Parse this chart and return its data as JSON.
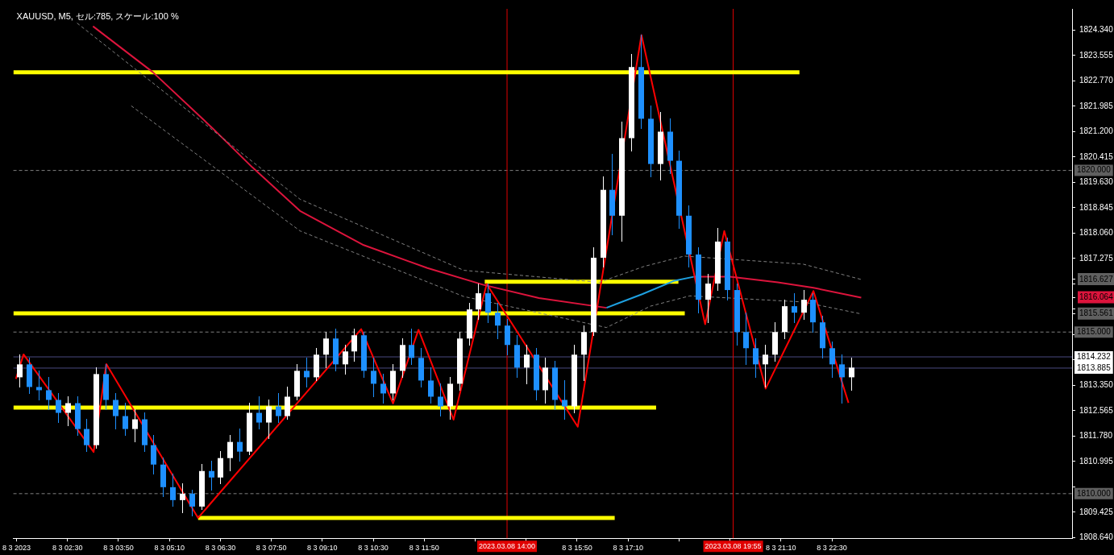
{
  "chart_data": {
    "type": "candlestick",
    "title": "XAUUSD, M5, セル:785, スケール:100 %",
    "xlim": [
      "2023-03-08T01:05",
      "2023-03-09T04:47"
    ],
    "ylim": [
      1808.62,
      1825.0
    ],
    "xticks": [
      {
        "value": "2023-03-08T01:10",
        "label": "8 3 2023"
      },
      {
        "value": "2023-03-08T02:30",
        "label": "8 3 02:30"
      },
      {
        "value": "2023-03-08T03:50",
        "label": "8 3 03:50"
      },
      {
        "value": "2023-03-08T05:10",
        "label": "8 3 05:10"
      },
      {
        "value": "2023-03-08T06:30",
        "label": "8 3 06:30"
      },
      {
        "value": "2023-03-08T07:50",
        "label": "8 3 07:50"
      },
      {
        "value": "2023-03-08T09:10",
        "label": "8 3 09:10"
      },
      {
        "value": "2023-03-08T10:30",
        "label": "8 3 10:30"
      },
      {
        "value": "2023-03-08T11:50",
        "label": "8 3 11:50"
      },
      {
        "value": "2023-03-08T13:10",
        "label": null
      },
      {
        "value": "2023-03-08T14:30",
        "label": null
      },
      {
        "value": "2023-03-08T15:50",
        "label": "8 3 15:50"
      },
      {
        "value": "2023-03-08T17:10",
        "label": "8 3 17:10"
      },
      {
        "value": "2023-03-08T18:30",
        "label": null
      },
      {
        "value": "2023-03-08T19:50",
        "label": null
      },
      {
        "value": "2023-03-08T21:10",
        "label": "8 3 21:10"
      },
      {
        "value": "2023-03-08T22:30",
        "label": "8 3 22:30"
      }
    ],
    "yticks": [
      {
        "value": 1824.34,
        "label": "1824.340"
      },
      {
        "value": 1823.555,
        "label": "1823.555"
      },
      {
        "value": 1822.77,
        "label": "1822.770"
      },
      {
        "value": 1821.985,
        "label": "1821.985"
      },
      {
        "value": 1821.2,
        "label": "1821.200"
      },
      {
        "value": 1820.415,
        "label": "1820.415"
      },
      {
        "value": 1819.63,
        "label": "1819.630"
      },
      {
        "value": 1818.845,
        "label": "1818.845"
      },
      {
        "value": 1818.06,
        "label": "1818.060"
      },
      {
        "value": 1817.275,
        "label": "1817.275"
      },
      {
        "value": 1816.627,
        "label": "1816.627"
      },
      {
        "value": 1816.49,
        "label": null
      },
      {
        "value": 1816.064,
        "label": "1816.064"
      },
      {
        "value": 1815.705,
        "label": null
      },
      {
        "value": 1815.561,
        "label": "1815.561"
      },
      {
        "value": 1814.92,
        "label": null
      },
      {
        "value": 1814.135,
        "label": null
      },
      {
        "value": 1813.35,
        "label": "1813.350"
      },
      {
        "value": 1812.565,
        "label": "1812.565"
      },
      {
        "value": 1811.78,
        "label": "1811.780"
      },
      {
        "value": 1810.995,
        "label": "1810.995"
      },
      {
        "value": 1810.21,
        "label": null
      },
      {
        "value": 1809.425,
        "label": "1809.425"
      },
      {
        "value": 1808.64,
        "label": "1808.640"
      }
    ],
    "grid": false,
    "legend": false,
    "marker": "none",
    "ref_lines": [
      {
        "axis": "y",
        "value": 1820,
        "label": "1820.000",
        "color": "#808080",
        "line_style": "dashed"
      },
      {
        "axis": "y",
        "value": 1815,
        "label": "1815.000",
        "color": "#808080",
        "line_style": "dashed"
      },
      {
        "axis": "y",
        "value": 1810,
        "label": "1810.000",
        "color": "#808080",
        "line_style": "dashed"
      },
      {
        "axis": "y",
        "value": 1814.232,
        "label": "1814.232",
        "color": "#4a4a80",
        "line_style": "solid"
      },
      {
        "axis": "y",
        "value": 1813.885,
        "label": "1813.885",
        "color": "#4a4a80",
        "line_style": "solid"
      },
      {
        "axis": "x",
        "value": "2023-03-08T14:00",
        "label": "2023.03.08 14:00",
        "color": "#e00000",
        "line_style": "solid"
      },
      {
        "axis": "x",
        "value": "2023-03-08T19:55",
        "label": "2023.03.08 19:55",
        "color": "#e00000",
        "line_style": "solid"
      }
    ],
    "series": [
      {
        "type": "line",
        "color": "#808080",
        "line_style": "dashed",
        "x": [
          "2023-03-08T02:45",
          "2023-03-08T08:35",
          "2023-03-08T12:52",
          "2023-03-08T16:25",
          "2023-03-08T17:35",
          "2023-03-08T18:38",
          "2023-03-08T21:45",
          "2023-03-08T23:16"
        ],
        "values": [
          1824.56,
          1819.11,
          1816.91,
          1816.54,
          1817.03,
          1817.35,
          1817.1,
          1816.627
        ]
      },
      {
        "type": "line",
        "color": "#808080",
        "line_style": "dashed",
        "x": [
          "2023-03-08T04:10",
          "2023-03-08T08:35",
          "2023-03-08T12:52",
          "2023-03-08T16:36",
          "2023-03-08T17:45",
          "2023-03-08T18:47",
          "2023-03-08T21:45",
          "2023-03-08T23:16"
        ],
        "values": [
          1822.0,
          1818.13,
          1816.1,
          1815.14,
          1815.8,
          1816.12,
          1815.93,
          1815.561
        ]
      },
      {
        "type": "line",
        "color": "#dc143c",
        "x": [
          "2023-03-08T03:10",
          "2023-03-08T04:44",
          "2023-03-08T06:17",
          "2023-03-08T07:20",
          "2023-03-08T08:35",
          "2023-03-08T10:15",
          "2023-03-08T11:55",
          "2023-03-08T13:23",
          "2023-03-08T14:50",
          "2023-03-08T16:36",
          "2023-03-08T17:30",
          "2023-03-08T18:53",
          "2023-03-08T19:50",
          "2023-03-08T21:05",
          "2023-03-08T22:01",
          "2023-03-08T23:16"
        ],
        "values": [
          1824.46,
          1823.04,
          1821.32,
          1820.1,
          1818.75,
          1817.69,
          1816.98,
          1816.46,
          1816.05,
          1815.75,
          null,
          1816.71,
          1816.71,
          1816.54,
          1816.37,
          1816.064
        ]
      },
      {
        "type": "line",
        "color": "#1ea0e0",
        "x": [
          "2023-03-08T16:36",
          "2023-03-08T17:32",
          "2023-03-08T18:23",
          "2023-03-08T18:53"
        ],
        "values": [
          1815.75,
          1816.17,
          1816.59,
          1816.71
        ]
      },
      {
        "type": "line",
        "color": "#ff0000",
        "x": [
          "2023-03-08T01:09",
          "2023-03-08T01:21",
          "2023-03-08T03:11",
          "2023-03-08T03:31",
          "2023-03-08T05:55",
          "2023-03-08T10:11",
          "2023-03-08T11:01",
          "2023-03-08T11:41",
          "2023-03-08T12:36",
          "2023-03-08T13:28",
          "2023-03-08T15:51",
          "2023-03-08T17:31",
          "2023-03-08T19:11",
          "2023-03-08T19:41",
          "2023-03-08T20:46",
          "2023-03-08T22:01",
          "2023-03-08T22:56"
        ],
        "values": [
          1813.55,
          1814.31,
          1811.29,
          1814.01,
          1809.25,
          1815.09,
          1812.79,
          1815.07,
          1812.29,
          1816.49,
          1812.07,
          1824.19,
          1815.24,
          1818.13,
          1813.25,
          1816.27,
          1812.81
        ]
      },
      {
        "type": "candlestick",
        "x": [
          "2023-03-08T01:15",
          "2023-03-08T01:30",
          "2023-03-08T01:45",
          "2023-03-08T02:00",
          "2023-03-08T02:15",
          "2023-03-08T02:30",
          "2023-03-08T02:45",
          "2023-03-08T03:00",
          "2023-03-08T03:15",
          "2023-03-08T03:30",
          "2023-03-08T03:45",
          "2023-03-08T04:00",
          "2023-03-08T04:15",
          "2023-03-08T04:30",
          "2023-03-08T04:45",
          "2023-03-08T05:00",
          "2023-03-08T05:15",
          "2023-03-08T05:30",
          "2023-03-08T05:45",
          "2023-03-08T06:00",
          "2023-03-08T06:15",
          "2023-03-08T06:30",
          "2023-03-08T06:45",
          "2023-03-08T07:00",
          "2023-03-08T07:15",
          "2023-03-08T07:30",
          "2023-03-08T07:45",
          "2023-03-08T08:00",
          "2023-03-08T08:15",
          "2023-03-08T08:30",
          "2023-03-08T08:45",
          "2023-03-08T09:00",
          "2023-03-08T09:15",
          "2023-03-08T09:30",
          "2023-03-08T09:45",
          "2023-03-08T10:00",
          "2023-03-08T10:15",
          "2023-03-08T10:30",
          "2023-03-08T10:45",
          "2023-03-08T11:00",
          "2023-03-08T11:15",
          "2023-03-08T11:30",
          "2023-03-08T11:45",
          "2023-03-08T12:00",
          "2023-03-08T12:15",
          "2023-03-08T12:30",
          "2023-03-08T12:45",
          "2023-03-08T13:00",
          "2023-03-08T13:15",
          "2023-03-08T13:30",
          "2023-03-08T13:45",
          "2023-03-08T14:00",
          "2023-03-08T14:15",
          "2023-03-08T14:30",
          "2023-03-08T14:45",
          "2023-03-08T15:00",
          "2023-03-08T15:15",
          "2023-03-08T15:30",
          "2023-03-08T15:45",
          "2023-03-08T16:00",
          "2023-03-08T16:15",
          "2023-03-08T16:30",
          "2023-03-08T16:45",
          "2023-03-08T17:00",
          "2023-03-08T17:15",
          "2023-03-08T17:30",
          "2023-03-08T17:45",
          "2023-03-08T18:00",
          "2023-03-08T18:15",
          "2023-03-08T18:30",
          "2023-03-08T18:45",
          "2023-03-08T19:00",
          "2023-03-08T19:15",
          "2023-03-08T19:30",
          "2023-03-08T19:45",
          "2023-03-08T20:00",
          "2023-03-08T20:15",
          "2023-03-08T20:30",
          "2023-03-08T20:45",
          "2023-03-08T21:00",
          "2023-03-08T21:15",
          "2023-03-08T21:30",
          "2023-03-08T21:45",
          "2023-03-08T22:00",
          "2023-03-08T22:15",
          "2023-03-08T22:30",
          "2023-03-08T22:45",
          "2023-03-08T23:00"
        ],
        "ohlc": [
          [
            1813.6,
            1814.3,
            1813.3,
            1814.0
          ],
          [
            1814.0,
            1814.2,
            1813.1,
            1813.3
          ],
          [
            1813.3,
            1813.8,
            1812.9,
            1813.2
          ],
          [
            1813.2,
            1813.6,
            1812.6,
            1812.9
          ],
          [
            1812.9,
            1813.1,
            1812.2,
            1812.5
          ],
          [
            1812.5,
            1813.0,
            1812.1,
            1812.8
          ],
          [
            1812.8,
            1813.0,
            1811.8,
            1812.0
          ],
          [
            1812.0,
            1812.3,
            1811.3,
            1811.5
          ],
          [
            1811.5,
            1813.9,
            1811.4,
            1813.7
          ],
          [
            1813.7,
            1814.0,
            1812.6,
            1812.9
          ],
          [
            1812.9,
            1813.1,
            1812.0,
            1812.4
          ],
          [
            1812.4,
            1812.8,
            1811.8,
            1812.0
          ],
          [
            1812.0,
            1812.6,
            1811.6,
            1812.3
          ],
          [
            1812.3,
            1812.5,
            1811.3,
            1811.5
          ],
          [
            1811.5,
            1811.8,
            1810.6,
            1810.9
          ],
          [
            1810.9,
            1811.1,
            1809.9,
            1810.2
          ],
          [
            1810.2,
            1810.6,
            1809.6,
            1809.8
          ],
          [
            1809.8,
            1810.3,
            1809.4,
            1810.0
          ],
          [
            1810.0,
            1810.1,
            1809.3,
            1809.6
          ],
          [
            1809.6,
            1810.9,
            1809.5,
            1810.7
          ],
          [
            1810.7,
            1811.0,
            1810.1,
            1810.5
          ],
          [
            1810.5,
            1811.3,
            1810.3,
            1811.1
          ],
          [
            1811.1,
            1811.8,
            1810.7,
            1811.6
          ],
          [
            1811.6,
            1812.0,
            1811.0,
            1811.3
          ],
          [
            1811.3,
            1812.8,
            1811.2,
            1812.5
          ],
          [
            1812.5,
            1813.0,
            1812.0,
            1812.2
          ],
          [
            1812.2,
            1812.9,
            1811.7,
            1812.7
          ],
          [
            1812.7,
            1813.1,
            1812.2,
            1812.4
          ],
          [
            1812.4,
            1813.3,
            1812.3,
            1813.0
          ],
          [
            1813.0,
            1814.0,
            1812.9,
            1813.8
          ],
          [
            1813.8,
            1814.2,
            1813.3,
            1813.6
          ],
          [
            1813.6,
            1814.5,
            1813.5,
            1814.3
          ],
          [
            1814.3,
            1815.0,
            1813.9,
            1814.8
          ],
          [
            1814.8,
            1815.1,
            1813.8,
            1814.0
          ],
          [
            1814.0,
            1814.6,
            1813.7,
            1814.4
          ],
          [
            1814.4,
            1815.1,
            1814.1,
            1814.9
          ],
          [
            1814.9,
            1815.0,
            1813.6,
            1813.8
          ],
          [
            1813.8,
            1814.2,
            1813.0,
            1813.4
          ],
          [
            1813.4,
            1813.7,
            1812.8,
            1813.1
          ],
          [
            1813.1,
            1814.0,
            1812.9,
            1813.8
          ],
          [
            1813.8,
            1814.8,
            1813.6,
            1814.6
          ],
          [
            1814.6,
            1815.1,
            1814.0,
            1814.2
          ],
          [
            1814.2,
            1814.5,
            1813.3,
            1813.5
          ],
          [
            1813.5,
            1813.9,
            1812.8,
            1813.0
          ],
          [
            1813.0,
            1813.4,
            1812.4,
            1812.7
          ],
          [
            1812.7,
            1813.6,
            1812.3,
            1813.4
          ],
          [
            1813.4,
            1815.0,
            1813.2,
            1814.8
          ],
          [
            1814.8,
            1815.9,
            1814.6,
            1815.7
          ],
          [
            1815.7,
            1816.5,
            1815.4,
            1816.2
          ],
          [
            1816.2,
            1816.5,
            1815.3,
            1815.6
          ],
          [
            1815.6,
            1815.9,
            1814.8,
            1815.2
          ],
          [
            1815.2,
            1815.4,
            1814.3,
            1814.6
          ],
          [
            1814.6,
            1814.9,
            1813.6,
            1813.9
          ],
          [
            1813.9,
            1814.6,
            1813.4,
            1814.3
          ],
          [
            1814.3,
            1814.5,
            1812.9,
            1813.2
          ],
          [
            1813.2,
            1814.2,
            1812.8,
            1813.9
          ],
          [
            1813.9,
            1814.1,
            1812.6,
            1812.9
          ],
          [
            1812.9,
            1813.5,
            1812.3,
            1812.7
          ],
          [
            1812.7,
            1814.6,
            1812.5,
            1814.3
          ],
          [
            1814.3,
            1815.2,
            1813.5,
            1815.0
          ],
          [
            1815.0,
            1817.6,
            1814.9,
            1817.3
          ],
          [
            1817.3,
            1819.8,
            1817.0,
            1819.4
          ],
          [
            1819.4,
            1820.5,
            1818.0,
            1818.6
          ],
          [
            1818.6,
            1821.5,
            1817.8,
            1821.0
          ],
          [
            1821.0,
            1823.6,
            1820.6,
            1823.2
          ],
          [
            1823.2,
            1824.2,
            1821.3,
            1821.6
          ],
          [
            1821.6,
            1822.0,
            1819.8,
            1820.2
          ],
          [
            1820.2,
            1821.8,
            1819.7,
            1821.2
          ],
          [
            1821.2,
            1821.6,
            1819.9,
            1820.3
          ],
          [
            1820.3,
            1820.6,
            1818.2,
            1818.6
          ],
          [
            1818.6,
            1818.9,
            1817.0,
            1817.4
          ],
          [
            1817.4,
            1817.6,
            1815.6,
            1816.0
          ],
          [
            1816.0,
            1816.8,
            1815.3,
            1816.5
          ],
          [
            1816.5,
            1818.2,
            1816.3,
            1817.8
          ],
          [
            1817.8,
            1817.9,
            1816.0,
            1816.3
          ],
          [
            1816.3,
            1816.5,
            1814.6,
            1815.0
          ],
          [
            1815.0,
            1815.6,
            1814.0,
            1814.5
          ],
          [
            1814.5,
            1814.8,
            1813.6,
            1814.0
          ],
          [
            1814.0,
            1814.6,
            1813.3,
            1814.3
          ],
          [
            1814.3,
            1815.3,
            1814.1,
            1815.0
          ],
          [
            1815.0,
            1816.0,
            1814.8,
            1815.8
          ],
          [
            1815.8,
            1816.2,
            1815.3,
            1815.6
          ],
          [
            1815.6,
            1816.3,
            1815.4,
            1816.0
          ],
          [
            1816.0,
            1816.2,
            1815.0,
            1815.3
          ],
          [
            1815.3,
            1815.5,
            1814.2,
            1814.5
          ],
          [
            1814.5,
            1814.7,
            1813.6,
            1814.0
          ],
          [
            1814.0,
            1814.3,
            1812.8,
            1813.6
          ],
          [
            1813.6,
            1814.2,
            1813.2,
            1813.9
          ]
        ],
        "colors": [
          "#ffffff",
          "#1e90ff",
          "#1e90ff",
          "#1e90ff",
          "#1e90ff",
          "#ffffff",
          "#1e90ff",
          "#1e90ff",
          "#ffffff",
          "#1e90ff",
          "#1e90ff",
          "#1e90ff",
          "#ffffff",
          "#1e90ff",
          "#1e90ff",
          "#1e90ff",
          "#1e90ff",
          "#ffffff",
          "#1e90ff",
          "#ffffff",
          "#1e90ff",
          "#ffffff",
          "#ffffff",
          "#1e90ff",
          "#ffffff",
          "#1e90ff",
          "#ffffff",
          "#1e90ff",
          "#ffffff",
          "#ffffff",
          "#1e90ff",
          "#ffffff",
          "#ffffff",
          "#1e90ff",
          "#ffffff",
          "#ffffff",
          "#1e90ff",
          "#1e90ff",
          "#1e90ff",
          "#ffffff",
          "#ffffff",
          "#1e90ff",
          "#1e90ff",
          "#1e90ff",
          "#1e90ff",
          "#ffffff",
          "#ffffff",
          "#ffffff",
          "#ffffff",
          "#1e90ff",
          "#1e90ff",
          "#1e90ff",
          "#1e90ff",
          "#ffffff",
          "#1e90ff",
          "#ffffff",
          "#1e90ff",
          "#1e90ff",
          "#ffffff",
          "#ffffff",
          "#ffffff",
          "#ffffff",
          "#1e90ff",
          "#ffffff",
          "#ffffff",
          "#1e90ff",
          "#1e90ff",
          "#ffffff",
          "#1e90ff",
          "#1e90ff",
          "#1e90ff",
          "#1e90ff",
          "#ffffff",
          "#ffffff",
          "#1e90ff",
          "#1e90ff",
          "#1e90ff",
          "#1e90ff",
          "#ffffff",
          "#ffffff",
          "#ffffff",
          "#1e90ff",
          "#ffffff",
          "#1e90ff",
          "#1e90ff",
          "#1e90ff",
          "#1e90ff",
          "#ffffff"
        ]
      },
      {
        "type": "line",
        "color": "#ffff00",
        "x": [
          "2023-03-08T01:05",
          "2023-03-08T21:39"
        ],
        "values": [
          1823.04,
          1823.04
        ]
      },
      {
        "type": "line",
        "color": "#ffff00",
        "x": [
          "2023-03-08T13:25",
          "2023-03-08T18:29"
        ],
        "values": [
          1816.56,
          1816.56
        ]
      },
      {
        "type": "line",
        "color": "#ffff00",
        "x": [
          "2023-03-08T01:05",
          "2023-03-08T18:39"
        ],
        "values": [
          1815.58,
          1815.58
        ]
      },
      {
        "type": "line",
        "color": "#ffff00",
        "x": [
          "2023-03-08T01:05",
          "2023-03-08T17:54"
        ],
        "values": [
          1812.66,
          1812.66
        ]
      },
      {
        "type": "line",
        "color": "#ffff00",
        "x": [
          "2023-03-08T05:55",
          "2023-03-08T16:49"
        ],
        "values": [
          1809.25,
          1809.25
        ]
      }
    ]
  }
}
